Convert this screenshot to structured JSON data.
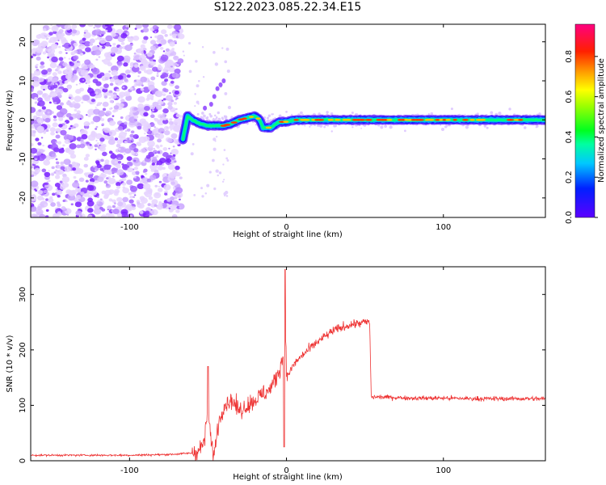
{
  "title": "S122.2023.085.22.34.E15",
  "colorbar": {
    "label": "Normalized spectral amplitude",
    "ticks": [
      0.0,
      0.2,
      0.4,
      0.6,
      0.8
    ],
    "tick_labels": [
      "0.0",
      "0.2",
      "0.4",
      "0.6",
      "0.8"
    ],
    "range": [
      0.0,
      0.96
    ],
    "colormap": "gist_rainbow_r (purple-blue-cyan-green-yellow-orange-red-pink)"
  },
  "chart_data": [
    {
      "type": "heatmap",
      "panel": "spectrogram",
      "xlabel": "Height of straight line (km)",
      "ylabel": "Frequency (Hz)",
      "xlim": [
        -163,
        165
      ],
      "ylim": [
        -25,
        24.5
      ],
      "xticks": [
        -100,
        0,
        100
      ],
      "xtick_labels": [
        "-100",
        "0",
        "100"
      ],
      "yticks": [
        -20,
        -10,
        0,
        10,
        20
      ],
      "ytick_labels": [
        "-20",
        "-10",
        "0",
        "10",
        "20"
      ],
      "description_points": {
        "noise_region_x": [
          -163,
          -67
        ],
        "signal_track": {
          "x": [
            -66,
            -63,
            -60,
            -55,
            -50,
            -45,
            -40,
            -35,
            -30,
            -25,
            -20,
            -17,
            -15,
            -13,
            -10,
            -5,
            0,
            5,
            20,
            50,
            100,
            150,
            165
          ],
          "frequency": [
            -5,
            1,
            0,
            -1,
            -1.5,
            -1.5,
            -1.5,
            -1,
            0,
            0.5,
            1,
            0,
            -2,
            -2,
            -2,
            -0.5,
            -0.5,
            0,
            0,
            0,
            0,
            0,
            0
          ]
        }
      }
    },
    {
      "type": "line",
      "panel": "snr",
      "xlabel": "Height of straight line (km)",
      "ylabel": "SNR (10 * v/v)",
      "xlim": [
        -163,
        165
      ],
      "ylim": [
        0,
        350
      ],
      "xticks": [
        -100,
        0,
        100
      ],
      "xtick_labels": [
        "-100",
        "0",
        "100"
      ],
      "yticks": [
        0,
        100,
        200,
        300
      ],
      "ytick_labels": [
        "0",
        "100",
        "200",
        "300"
      ],
      "color": "#ee3333",
      "series": [
        {
          "x": [
            -163,
            -140,
            -120,
            -100,
            -80,
            -70,
            -60,
            -55,
            -52,
            -50,
            -48,
            -46,
            -44,
            -40,
            -35,
            -30,
            -25,
            -20,
            -15,
            -10,
            -5,
            -2,
            -1,
            0,
            5,
            10,
            20,
            30,
            40,
            50,
            53,
            54,
            60,
            80,
            100,
            120,
            140,
            165
          ],
          "values": [
            10,
            10,
            10,
            10,
            11,
            12,
            14,
            20,
            40,
            100,
            30,
            10,
            60,
            100,
            110,
            90,
            100,
            110,
            120,
            130,
            160,
            190,
            330,
            150,
            175,
            190,
            215,
            235,
            245,
            250,
            250,
            115,
            115,
            113,
            113,
            112,
            112,
            112
          ]
        }
      ]
    }
  ]
}
